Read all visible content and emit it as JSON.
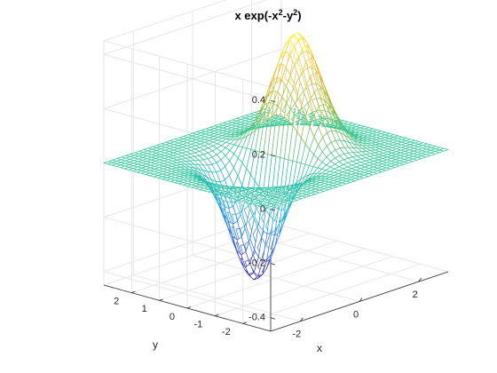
{
  "chart_data": {
    "type": "surface",
    "function": "x*exp(-x^2-y^2)",
    "title": {
      "base": "x exp(-x",
      "sup1": "2",
      "mid": "-y",
      "sup2": "2",
      "end": ")"
    },
    "xlabel": "x",
    "ylabel": "y",
    "xlim": [
      -3,
      3
    ],
    "ylim": [
      -3,
      3
    ],
    "zlim": [
      -0.45,
      0.45
    ],
    "x_ticks": [
      -2,
      0,
      2
    ],
    "y_ticks": [
      -2,
      -1,
      0,
      1,
      2
    ],
    "z_ticks": [
      -0.4,
      -0.2,
      0,
      0.2,
      0.4
    ],
    "z_tick_labels": [
      "-0.4",
      "-0.2",
      "0",
      "0.2",
      "0.4"
    ],
    "grid": true,
    "style": "mesh",
    "colormap": [
      "#3e26a8",
      "#2f6ef9",
      "#16b1d6",
      "#2fc79a",
      "#a3bd37",
      "#f7ba3c",
      "#f9fb15"
    ]
  }
}
